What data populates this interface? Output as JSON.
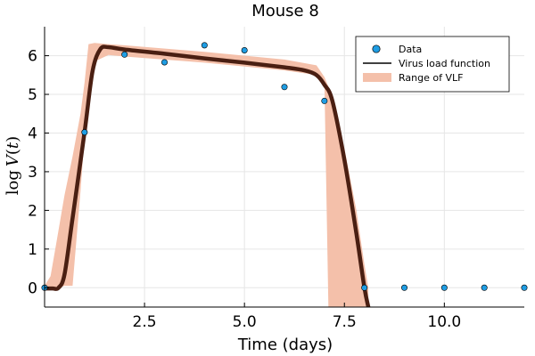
{
  "chart_data": {
    "type": "scatter",
    "title": "Mouse 8",
    "xlabel": "Time (days)",
    "ylabel": "log V(t)",
    "ylabel_parts": {
      "log": "log",
      "v": "V",
      "paren_open": "(",
      "t": "t",
      "paren_close": ")"
    },
    "xlim": [
      0,
      12
    ],
    "ylim": [
      -0.5,
      6.75
    ],
    "x_ticks": [
      2.5,
      5.0,
      7.5,
      10.0
    ],
    "x_tick_labels": [
      "2.5",
      "5.0",
      "7.5",
      "10.0"
    ],
    "y_ticks": [
      0,
      1,
      2,
      3,
      4,
      5,
      6
    ],
    "y_tick_labels": [
      "0",
      "1",
      "2",
      "3",
      "4",
      "5",
      "6"
    ],
    "grid": true,
    "legend_position": "top-right",
    "series": [
      {
        "name": "Data",
        "kind": "scatter",
        "color": "#1f9de3",
        "x": [
          0,
          1,
          2,
          3,
          4,
          5,
          6,
          7,
          8,
          9,
          10,
          11,
          12
        ],
        "y": [
          0.0,
          4.02,
          6.03,
          5.83,
          6.27,
          6.14,
          5.19,
          4.83,
          0.0,
          0.0,
          0.0,
          0.0,
          0.0
        ]
      },
      {
        "name": "Virus load function",
        "kind": "line",
        "color": "#4a1f12",
        "x": [
          0,
          0.2,
          0.35,
          0.5,
          0.7,
          1.0,
          1.2,
          1.4,
          1.6,
          2.0,
          3.0,
          4.0,
          5.0,
          6.0,
          6.5,
          6.8,
          7.0,
          7.2,
          7.5,
          7.8,
          8.0,
          8.1
        ],
        "y": [
          -0.02,
          -0.02,
          0.0,
          0.35,
          1.8,
          4.02,
          5.6,
          6.18,
          6.22,
          6.16,
          6.05,
          5.93,
          5.82,
          5.7,
          5.62,
          5.5,
          5.25,
          4.83,
          3.3,
          1.4,
          0.0,
          -0.5
        ]
      },
      {
        "name": "Range of VLF",
        "kind": "band",
        "color": "#f4c0aa",
        "x": [
          0,
          0.15,
          0.3,
          0.5,
          0.7,
          0.9,
          1.0,
          1.1,
          1.25,
          1.6,
          2.0,
          4.0,
          6.0,
          6.8,
          7.0,
          7.1,
          7.2,
          7.5,
          7.8,
          8.0,
          8.1
        ],
        "lower": [
          -0.02,
          -0.02,
          -0.02,
          0.05,
          0.05,
          2.5,
          3.9,
          5.0,
          5.85,
          6.02,
          5.98,
          5.82,
          5.62,
          5.5,
          5.35,
          -0.5,
          -0.5,
          -0.5,
          -0.5,
          -0.5,
          -0.5
        ],
        "upper": [
          0.05,
          0.3,
          1.2,
          2.4,
          3.4,
          4.5,
          5.3,
          6.3,
          6.33,
          6.3,
          6.27,
          6.1,
          5.9,
          5.75,
          5.45,
          5.2,
          4.8,
          3.6,
          2.0,
          0.6,
          0.0
        ]
      }
    ]
  }
}
